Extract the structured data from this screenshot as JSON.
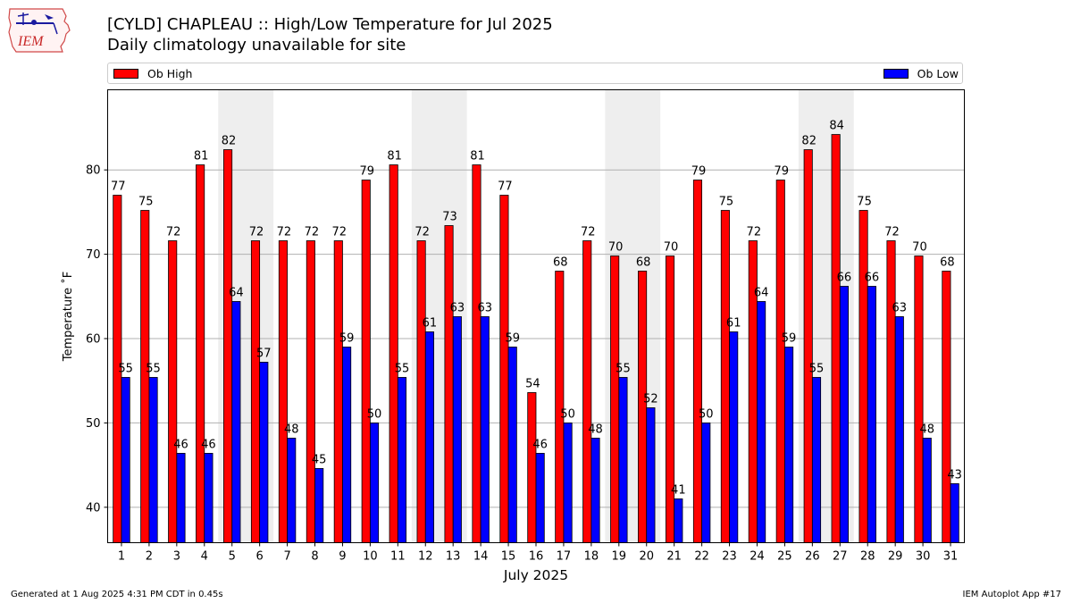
{
  "header": {
    "title": "[CYLD] CHAPLEAU :: High/Low Temperature for Jul 2025",
    "subtitle": "Daily climatology unavailable for site"
  },
  "logo": {
    "text": "IEM",
    "icon": "iem-iowa-logo"
  },
  "footer": {
    "generated": "Generated at 1 Aug 2025 4:31 PM CDT in 0.45s",
    "app": "IEM Autoplot App #17"
  },
  "chart_data": {
    "type": "bar",
    "xlabel": "July 2025",
    "ylabel": "Temperature ˚F",
    "ylim": [
      35.8,
      89.5
    ],
    "yticks": [
      40,
      50,
      60,
      70,
      80
    ],
    "grid": "horizontal",
    "legend_placement": "top",
    "weekend_shading": [
      [
        5,
        6
      ],
      [
        12,
        13
      ],
      [
        19,
        20
      ],
      [
        26,
        27
      ]
    ],
    "categories": [
      "1",
      "2",
      "3",
      "4",
      "5",
      "6",
      "7",
      "8",
      "9",
      "10",
      "11",
      "12",
      "13",
      "14",
      "15",
      "16",
      "17",
      "18",
      "19",
      "20",
      "21",
      "22",
      "23",
      "24",
      "25",
      "26",
      "27",
      "28",
      "29",
      "30",
      "31"
    ],
    "series": [
      {
        "name": "Ob High",
        "color": "#ff0000",
        "values": [
          77.0,
          75.2,
          71.6,
          80.6,
          82.4,
          71.6,
          71.6,
          71.6,
          71.6,
          78.8,
          80.6,
          71.6,
          73.4,
          80.6,
          77.0,
          53.6,
          68.0,
          71.6,
          69.8,
          68.0,
          69.8,
          78.8,
          75.2,
          71.6,
          78.8,
          82.4,
          84.2,
          75.2,
          71.6,
          69.8,
          68.0
        ],
        "labels": [
          "77",
          "75",
          "72",
          "81",
          "82",
          "72",
          "72",
          "72",
          "72",
          "79",
          "81",
          "72",
          "73",
          "81",
          "77",
          "54",
          "68",
          "72",
          "70",
          "68",
          "70",
          "79",
          "75",
          "72",
          "79",
          "82",
          "84",
          "75",
          "72",
          "70",
          "68"
        ]
      },
      {
        "name": "Ob Low",
        "color": "#0000ff",
        "values": [
          55.4,
          55.4,
          46.4,
          46.4,
          64.4,
          57.2,
          48.2,
          44.6,
          59.0,
          50.0,
          55.4,
          60.8,
          62.6,
          62.6,
          59.0,
          46.4,
          50.0,
          48.2,
          55.4,
          51.8,
          41.0,
          50.0,
          60.8,
          64.4,
          59.0,
          55.4,
          66.2,
          66.2,
          62.6,
          48.2,
          42.8
        ],
        "labels": [
          "55",
          "55",
          "46",
          "46",
          "64",
          "57",
          "48",
          "45",
          "59",
          "50",
          "55",
          "61",
          "63",
          "63",
          "59",
          "46",
          "50",
          "48",
          "55",
          "52",
          "41",
          "50",
          "61",
          "64",
          "59",
          "55",
          "66",
          "66",
          "63",
          "48",
          "43"
        ]
      }
    ]
  }
}
